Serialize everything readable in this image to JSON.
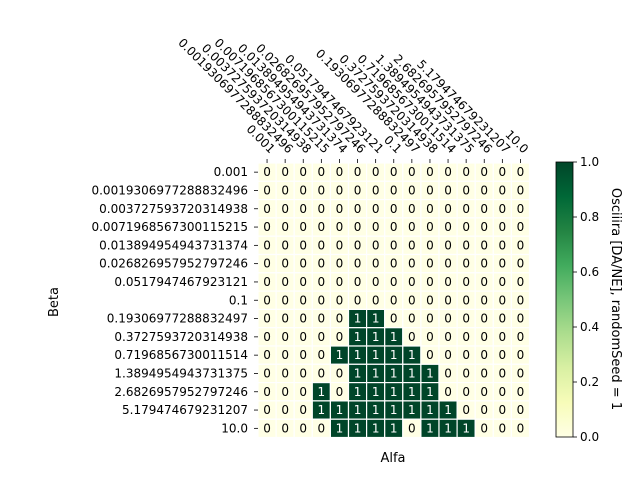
{
  "chart_data": {
    "type": "heatmap",
    "xlabel": "Alfa",
    "ylabel": "Beta",
    "x_categories": [
      "0.001",
      "0.0019306977288832496",
      "0.003727593720314938",
      "0.0071968567300115215",
      "0.013894954943731374",
      "0.026826957952797246",
      "0.0517947467923121",
      "0.1",
      "0.19306977288832497",
      "0.3727593720314938",
      "0.7196856730011514",
      "1.3894954943731375",
      "2.6826957952797246",
      "5.179474679231207",
      "10.0"
    ],
    "y_categories": [
      "0.001",
      "0.0019306977288832496",
      "0.003727593720314938",
      "0.0071968567300115215",
      "0.013894954943731374",
      "0.026826957952797246",
      "0.0517947467923121",
      "0.1",
      "0.19306977288832497",
      "0.3727593720314938",
      "0.7196856730011514",
      "1.3894954943731375",
      "2.6826957952797246",
      "5.179474679231207",
      "10.0"
    ],
    "values": [
      [
        0,
        0,
        0,
        0,
        0,
        0,
        0,
        0,
        0,
        0,
        0,
        0,
        0,
        0,
        0
      ],
      [
        0,
        0,
        0,
        0,
        0,
        0,
        0,
        0,
        0,
        0,
        0,
        0,
        0,
        0,
        0
      ],
      [
        0,
        0,
        0,
        0,
        0,
        0,
        0,
        0,
        0,
        0,
        0,
        0,
        0,
        0,
        0
      ],
      [
        0,
        0,
        0,
        0,
        0,
        0,
        0,
        0,
        0,
        0,
        0,
        0,
        0,
        0,
        0
      ],
      [
        0,
        0,
        0,
        0,
        0,
        0,
        0,
        0,
        0,
        0,
        0,
        0,
        0,
        0,
        0
      ],
      [
        0,
        0,
        0,
        0,
        0,
        0,
        0,
        0,
        0,
        0,
        0,
        0,
        0,
        0,
        0
      ],
      [
        0,
        0,
        0,
        0,
        0,
        0,
        0,
        0,
        0,
        0,
        0,
        0,
        0,
        0,
        0
      ],
      [
        0,
        0,
        0,
        0,
        0,
        0,
        0,
        0,
        0,
        0,
        0,
        0,
        0,
        0,
        0
      ],
      [
        0,
        0,
        0,
        0,
        0,
        1,
        1,
        0,
        0,
        0,
        0,
        0,
        0,
        0,
        0
      ],
      [
        0,
        0,
        0,
        0,
        0,
        1,
        1,
        1,
        0,
        0,
        0,
        0,
        0,
        0,
        0
      ],
      [
        0,
        0,
        0,
        0,
        1,
        1,
        1,
        1,
        1,
        0,
        0,
        0,
        0,
        0,
        0
      ],
      [
        0,
        0,
        0,
        0,
        0,
        1,
        1,
        1,
        1,
        1,
        0,
        0,
        0,
        0,
        0
      ],
      [
        0,
        0,
        0,
        1,
        0,
        1,
        1,
        1,
        1,
        1,
        0,
        0,
        0,
        0,
        0
      ],
      [
        0,
        0,
        0,
        1,
        1,
        1,
        1,
        1,
        1,
        1,
        1,
        0,
        0,
        0,
        0
      ],
      [
        0,
        0,
        0,
        0,
        1,
        1,
        1,
        1,
        0,
        1,
        1,
        1,
        0,
        0,
        0
      ]
    ],
    "colorbar": {
      "label": "Osciiira [DA/NE], randomSeed = 1",
      "min": 0.0,
      "max": 1.0,
      "ticks": [
        "0.0",
        "0.2",
        "0.4",
        "0.6",
        "0.8",
        "1.0"
      ],
      "color_low": "#ffffe5",
      "color_high": "#004529"
    },
    "grid": false
  }
}
